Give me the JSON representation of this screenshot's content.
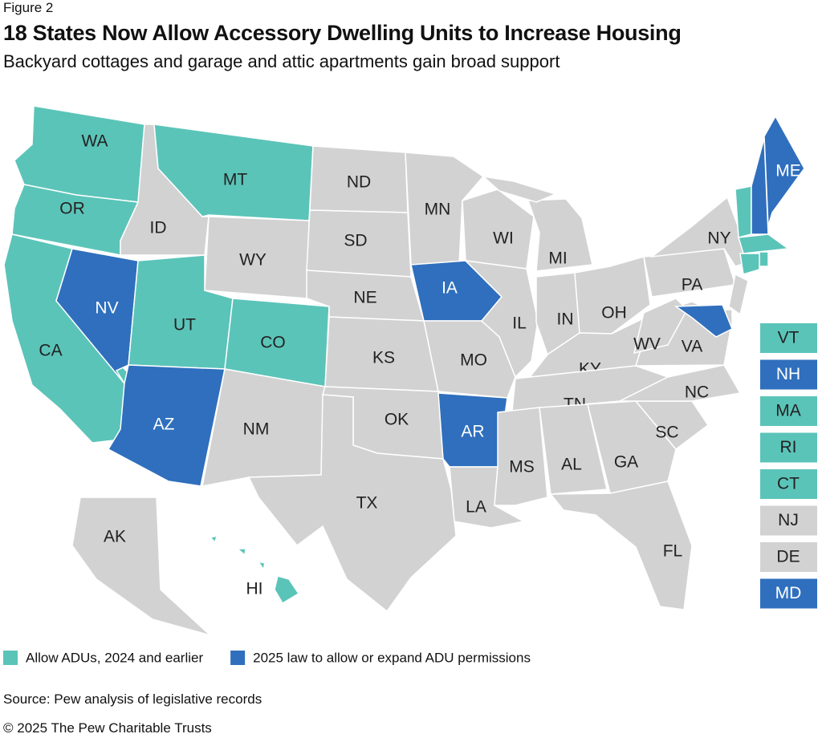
{
  "header": {
    "figure": "Figure 2",
    "title": "18 States Now Allow Accessory Dwelling Units to Increase Housing",
    "subtitle": "Backyard cottages and garage and attic apartments gain broad support"
  },
  "legend": [
    {
      "label": "Allow ADUs, 2024 and earlier",
      "color": "#5bc4b9"
    },
    {
      "label": "2025 law to allow or expand ADU permissions",
      "color": "#2f6fbd"
    }
  ],
  "states": [
    {
      "label": "WA",
      "color": "#5bc4b9"
    },
    {
      "label": "OR",
      "color": "#5bc4b9"
    },
    {
      "label": "CA",
      "color": "#5bc4b9"
    },
    {
      "label": "NV",
      "color": "#2f6fbd"
    },
    {
      "label": "ID",
      "color": "#d3d2d2"
    },
    {
      "label": "MT",
      "color": "#5bc4b9"
    },
    {
      "label": "WY",
      "color": "#d3d2d2"
    },
    {
      "label": "UT",
      "color": "#5bc4b9"
    },
    {
      "label": "CO",
      "color": "#5bc4b9"
    },
    {
      "label": "AZ",
      "color": "#2f6fbd"
    },
    {
      "label": "NM",
      "color": "#d3d2d2"
    },
    {
      "label": "ND",
      "color": "#d3d2d2"
    },
    {
      "label": "SD",
      "color": "#d3d2d2"
    },
    {
      "label": "NE",
      "color": "#d3d2d2"
    },
    {
      "label": "KS",
      "color": "#d3d2d2"
    },
    {
      "label": "OK",
      "color": "#d3d2d2"
    },
    {
      "label": "TX",
      "color": "#d3d2d2"
    },
    {
      "label": "MN",
      "color": "#d3d2d2"
    },
    {
      "label": "IA",
      "color": "#2f6fbd"
    },
    {
      "label": "MO",
      "color": "#d3d2d2"
    },
    {
      "label": "AR",
      "color": "#2f6fbd"
    },
    {
      "label": "LA",
      "color": "#d3d2d2"
    },
    {
      "label": "WI",
      "color": "#d3d2d2"
    },
    {
      "label": "IL",
      "color": "#d3d2d2"
    },
    {
      "label": "MI",
      "color": "#d3d2d2"
    },
    {
      "label": "IN",
      "color": "#d3d2d2"
    },
    {
      "label": "OH",
      "color": "#d3d2d2"
    },
    {
      "label": "KY",
      "color": "#d3d2d2"
    },
    {
      "label": "TN",
      "color": "#d3d2d2"
    },
    {
      "label": "MS",
      "color": "#d3d2d2"
    },
    {
      "label": "AL",
      "color": "#d3d2d2"
    },
    {
      "label": "GA",
      "color": "#d3d2d2"
    },
    {
      "label": "FL",
      "color": "#d3d2d2"
    },
    {
      "label": "SC",
      "color": "#d3d2d2"
    },
    {
      "label": "NC",
      "color": "#d3d2d2"
    },
    {
      "label": "VA",
      "color": "#d3d2d2"
    },
    {
      "label": "WV",
      "color": "#d3d2d2"
    },
    {
      "label": "PA",
      "color": "#d3d2d2"
    },
    {
      "label": "NY",
      "color": "#d3d2d2"
    },
    {
      "label": "ME",
      "color": "#2f6fbd"
    },
    {
      "label": "VT",
      "color": "#5bc4b9"
    },
    {
      "label": "NH",
      "color": "#2f6fbd"
    },
    {
      "label": "MA",
      "color": "#5bc4b9"
    },
    {
      "label": "RI",
      "color": "#5bc4b9"
    },
    {
      "label": "CT",
      "color": "#5bc4b9"
    },
    {
      "label": "NJ",
      "color": "#d3d2d2"
    },
    {
      "label": "DE",
      "color": "#d3d2d2"
    },
    {
      "label": "MD",
      "color": "#2f6fbd"
    },
    {
      "label": "AK",
      "color": "#d3d2d2"
    },
    {
      "label": "HI",
      "color": "#5bc4b9"
    }
  ],
  "source": "Source: Pew analysis of legislative records",
  "copyright": "© 2025 The Pew Charitable Trusts"
}
